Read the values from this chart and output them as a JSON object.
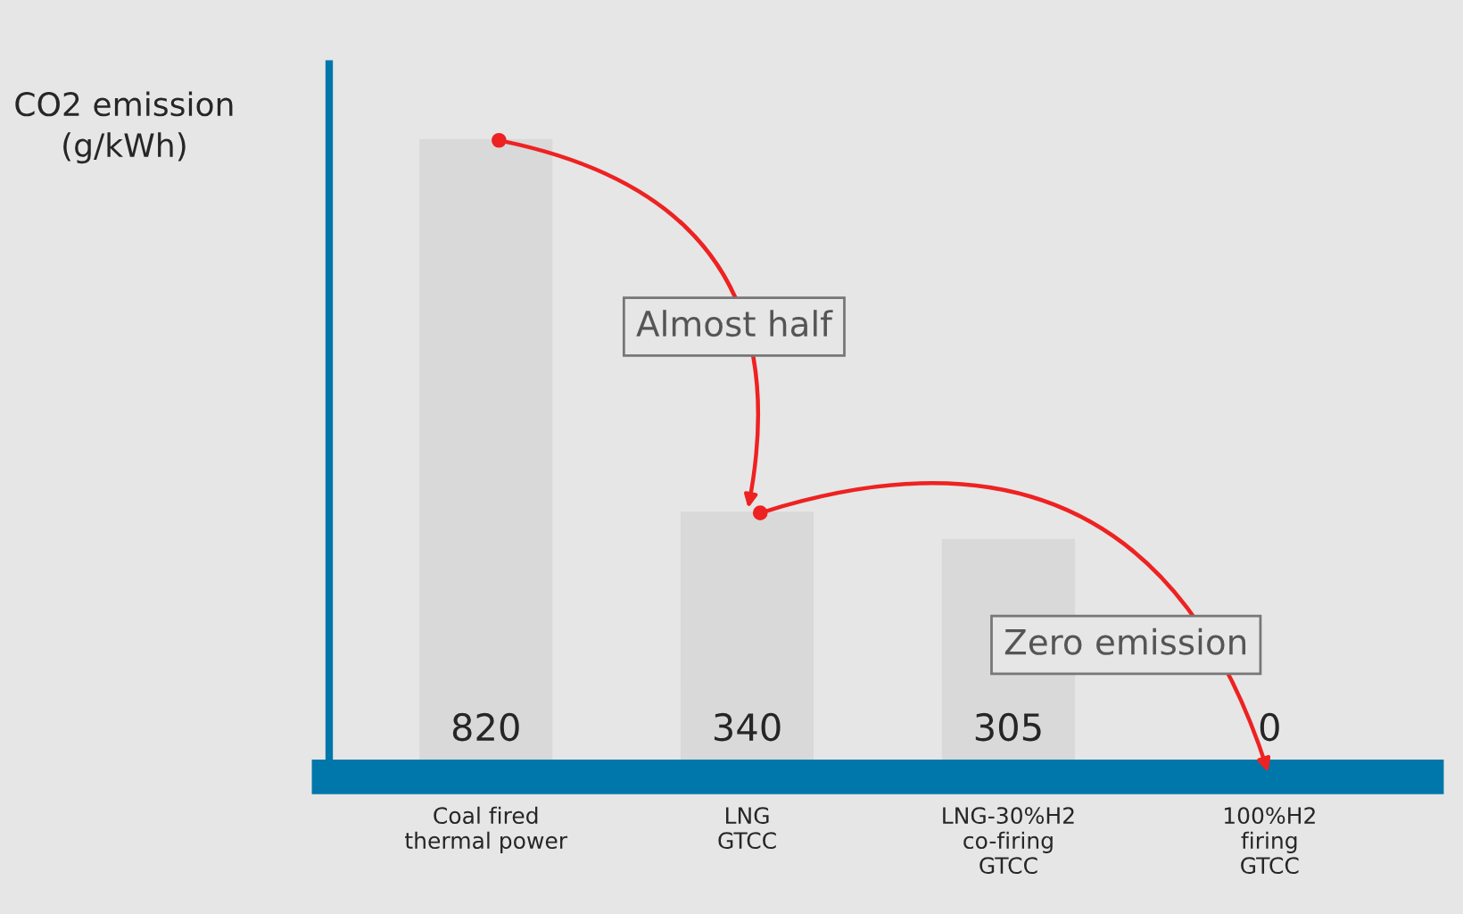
{
  "chart_data": {
    "type": "bar",
    "ylabel": "CO2 emission\n(g/kWh)",
    "categories": [
      "Coal fired\nthermal power",
      "LNG\nGTCC",
      "LNG-30%H2\nco-firing\nGTCC",
      "100%H2\nfiring\nGTCC"
    ],
    "values": [
      820,
      340,
      305,
      0
    ],
    "color": "#d9d9d9",
    "data_labels": true,
    "grid": false,
    "annotations": [
      "Almost half",
      "Zero emission"
    ]
  }
}
